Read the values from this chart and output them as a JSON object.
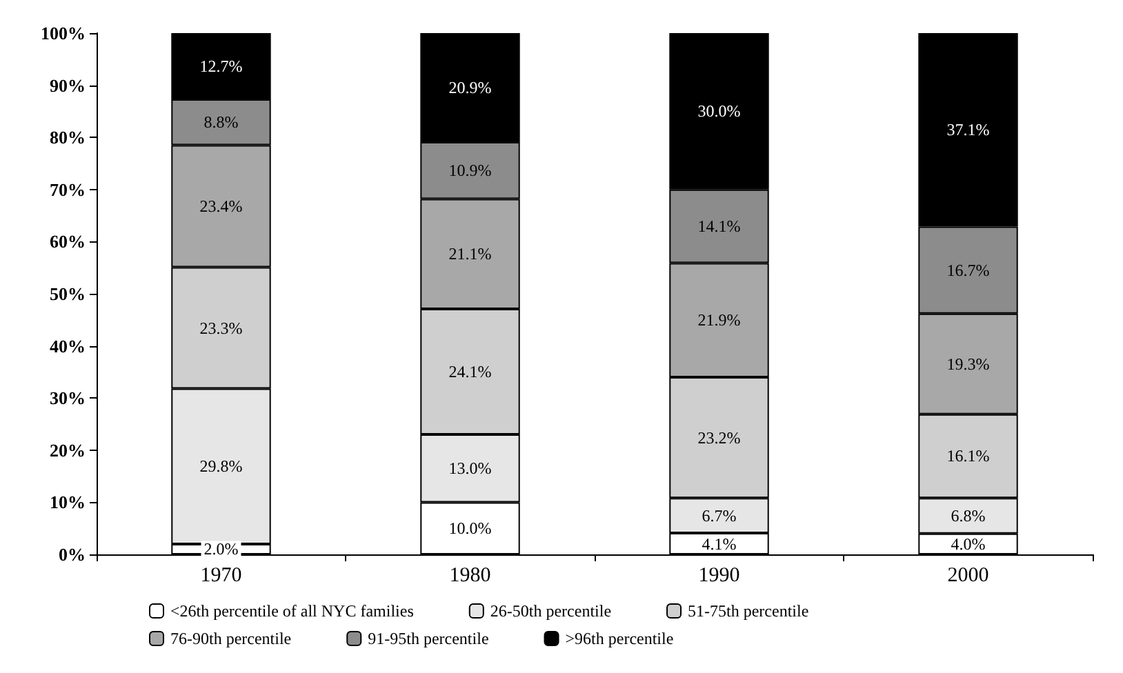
{
  "chart_data": {
    "type": "bar",
    "stacked": true,
    "categories": [
      "1970",
      "1980",
      "1990",
      "2000"
    ],
    "ylim": [
      0,
      100
    ],
    "yticks": [
      {
        "value": 0,
        "label": "0%"
      },
      {
        "value": 10,
        "label": "10%"
      },
      {
        "value": 20,
        "label": "20%"
      },
      {
        "value": 30,
        "label": "30%"
      },
      {
        "value": 40,
        "label": "40%"
      },
      {
        "value": 50,
        "label": "50%"
      },
      {
        "value": 60,
        "label": "60%"
      },
      {
        "value": 70,
        "label": "70%"
      },
      {
        "value": 80,
        "label": "80%"
      },
      {
        "value": 90,
        "label": "90%"
      },
      {
        "value": 100,
        "label": "100%"
      }
    ],
    "grid": false,
    "legend": "bottom",
    "series": [
      {
        "name": "<26th percentile of all NYC families",
        "color": "#ffffff",
        "values": [
          2.0,
          10.0,
          4.1,
          4.0
        ],
        "value_labels": [
          "2.0%",
          "10.0%",
          "4.1%",
          "4.0%"
        ]
      },
      {
        "name": "26-50th percentile",
        "color": "#e6e6e6",
        "values": [
          29.8,
          13.0,
          6.7,
          6.8
        ],
        "value_labels": [
          "29.8%",
          "13.0%",
          "6.7%",
          "6.8%"
        ]
      },
      {
        "name": "51-75th percentile",
        "color": "#cfcfcf",
        "values": [
          23.3,
          24.1,
          23.2,
          16.1
        ],
        "value_labels": [
          "23.3%",
          "24.1%",
          "23.2%",
          "16.1%"
        ]
      },
      {
        "name": "76-90th percentile",
        "color": "#a8a8a8",
        "values": [
          23.4,
          21.1,
          21.9,
          19.3
        ],
        "value_labels": [
          "23.4%",
          "21.1%",
          "21.9%",
          "19.3%"
        ]
      },
      {
        "name": "91-95th percentile",
        "color": "#8c8c8c",
        "values": [
          8.8,
          10.9,
          14.1,
          16.7
        ],
        "value_labels": [
          "8.8%",
          "10.9%",
          "14.1%",
          "16.7%"
        ]
      },
      {
        "name": ">96th percentile",
        "color": "#000000",
        "values": [
          12.7,
          20.9,
          30.0,
          37.1
        ],
        "value_labels": [
          "12.7%",
          "20.9%",
          "30.0%",
          "37.1%"
        ]
      }
    ]
  }
}
